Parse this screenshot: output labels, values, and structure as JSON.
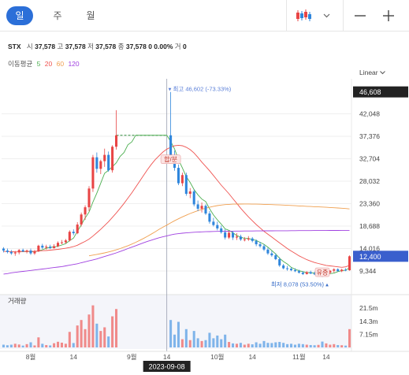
{
  "toolbar": {
    "tabs": [
      {
        "label": "일",
        "active": true
      },
      {
        "label": "주",
        "active": false
      },
      {
        "label": "월",
        "active": false
      }
    ],
    "chart_type_icon": "candlestick-icon",
    "dropdown_icon": "chevron-down-icon",
    "zoom_out_icon": "minus-icon",
    "zoom_in_icon": "plus-icon"
  },
  "info": {
    "symbol": "STX",
    "open_label": "시",
    "open": "37,578",
    "high_label": "고",
    "high": "37,578",
    "low_label": "저",
    "low": "37,578",
    "close_label": "종",
    "close": "37,578",
    "change": "0 0.00%",
    "volume_label": "거",
    "volume": "0"
  },
  "ma": {
    "label": "이동평균",
    "periods": [
      "5",
      "20",
      "60",
      "120"
    ],
    "colors": [
      "#4caf50",
      "#ef5350",
      "#f0a050",
      "#a040e0"
    ]
  },
  "scale_mode": "Linear",
  "colors": {
    "up": "#e84545",
    "down": "#2f86dc",
    "max_marker": "#5a7fd8",
    "min_marker": "#3b6fc9",
    "badge_bg": "#222222",
    "current_bg": "#3a5fcd"
  },
  "chart_data": {
    "type": "candlestick",
    "y_ticks": [
      "42,048",
      "37,376",
      "32,704",
      "28,032",
      "23,360",
      "18,688",
      "14,016",
      "9,344"
    ],
    "y_tick_values": [
      42048,
      37376,
      32704,
      28032,
      23360,
      18688,
      14016,
      9344
    ],
    "ylim": [
      5400,
      47700
    ],
    "badge_top": {
      "label": "46,608",
      "value": 46608
    },
    "badge_current": {
      "label": "12,400",
      "value": 12400
    },
    "max_annotation": {
      "label": "최고 46,602 (-73.33%)",
      "value": 46602,
      "index": 43
    },
    "min_annotation": {
      "label": "최저 8,078 (53.50%)",
      "value": 8078,
      "index": 83
    },
    "event_badges": [
      {
        "label": "합/분",
        "index": 43,
        "value": 32500
      },
      {
        "label": "유증",
        "index": 82,
        "value": 9000
      }
    ],
    "x_ticks": [
      {
        "label": "8월",
        "index": 7
      },
      {
        "label": "14",
        "index": 18
      },
      {
        "label": "9월",
        "index": 33
      },
      {
        "label": "14",
        "index": 42
      },
      {
        "label": "10월",
        "index": 55
      },
      {
        "label": "14",
        "index": 64
      },
      {
        "label": "11월",
        "index": 76
      },
      {
        "label": "14",
        "index": 83
      }
    ],
    "crosshair": {
      "label": "2023-09-08",
      "index": 42
    },
    "volume_title": "거래량",
    "volume_ticks": [
      "21.5m",
      "14.3m",
      "7.15m"
    ],
    "volume_tick_values": [
      21.5,
      14.3,
      7.15
    ],
    "volume_max": 28,
    "dashed_line": {
      "value": 37578,
      "from_index": 29,
      "to_index": 42
    },
    "candles": [
      [
        14000,
        14300,
        13200,
        13600,
        1.5
      ],
      [
        13600,
        14000,
        13000,
        13300,
        1.2
      ],
      [
        13300,
        13700,
        12700,
        13000,
        1.5
      ],
      [
        13000,
        13500,
        12500,
        13200,
        2.0
      ],
      [
        13200,
        13900,
        12800,
        13700,
        1.6
      ],
      [
        13700,
        14000,
        13300,
        13400,
        1.0
      ],
      [
        13400,
        13800,
        13000,
        13600,
        1.8
      ],
      [
        13600,
        14000,
        12700,
        13000,
        2.8
      ],
      [
        13000,
        13700,
        12700,
        13400,
        1.1
      ],
      [
        13400,
        14800,
        13300,
        14600,
        5.5
      ],
      [
        14600,
        15000,
        13900,
        14200,
        2.0
      ],
      [
        14200,
        14800,
        13800,
        14400,
        1.3
      ],
      [
        14400,
        14800,
        13900,
        14100,
        1.1
      ],
      [
        14100,
        14900,
        14000,
        14500,
        2.3
      ],
      [
        14500,
        15500,
        14300,
        15200,
        3.1
      ],
      [
        15200,
        15800,
        14900,
        15300,
        2.6
      ],
      [
        15300,
        16000,
        15000,
        15700,
        2.0
      ],
      [
        15700,
        17800,
        15500,
        17500,
        8.5
      ],
      [
        17500,
        18000,
        16800,
        17200,
        2.4
      ],
      [
        17200,
        19500,
        17000,
        19000,
        12.0
      ],
      [
        19000,
        21500,
        18600,
        21100,
        15.0
      ],
      [
        21100,
        23000,
        20000,
        22600,
        10.0
      ],
      [
        22600,
        27000,
        21800,
        26500,
        18.0
      ],
      [
        26500,
        33500,
        25800,
        33000,
        23.0
      ],
      [
        33000,
        34000,
        29800,
        30600,
        13.0
      ],
      [
        30600,
        32500,
        29500,
        32200,
        9.0
      ],
      [
        32200,
        34800,
        31000,
        33500,
        11.0
      ],
      [
        33500,
        34200,
        30000,
        30300,
        6.0
      ],
      [
        30300,
        35500,
        29800,
        35200,
        17.0
      ],
      [
        35200,
        42800,
        34600,
        37578,
        21.0
      ],
      [
        37578,
        37578,
        37578,
        37578,
        0
      ],
      [
        37578,
        37578,
        37578,
        37578,
        0
      ],
      [
        37578,
        37578,
        37578,
        37578,
        0
      ],
      [
        37578,
        37578,
        37578,
        37578,
        0
      ],
      [
        37578,
        37578,
        37578,
        37578,
        0
      ],
      [
        37578,
        37578,
        37578,
        37578,
        0
      ],
      [
        37578,
        37578,
        37578,
        37578,
        0
      ],
      [
        37578,
        37578,
        37578,
        37578,
        0
      ],
      [
        37578,
        37578,
        37578,
        37578,
        0
      ],
      [
        37578,
        37578,
        37578,
        37578,
        0
      ],
      [
        37578,
        37578,
        37578,
        37578,
        0
      ],
      [
        37578,
        37578,
        37578,
        37578,
        0
      ],
      [
        37578,
        37578,
        37578,
        37578,
        0
      ],
      [
        37578,
        46602,
        31800,
        33200,
        15.0
      ],
      [
        33200,
        34400,
        30200,
        30800,
        7.0
      ],
      [
        30800,
        31500,
        27200,
        27600,
        14.0
      ],
      [
        27600,
        29800,
        27000,
        29300,
        4.5
      ],
      [
        29300,
        29800,
        25000,
        25400,
        10.0
      ],
      [
        25400,
        26600,
        24500,
        25900,
        4.0
      ],
      [
        25900,
        26300,
        22800,
        23200,
        9.0
      ],
      [
        23200,
        24000,
        21800,
        22300,
        5.0
      ],
      [
        22300,
        23600,
        21500,
        22900,
        3.5
      ],
      [
        22900,
        23200,
        21000,
        21300,
        4.0
      ],
      [
        21300,
        21800,
        19200,
        19600,
        8.0
      ],
      [
        19600,
        20400,
        18600,
        18900,
        5.0
      ],
      [
        18900,
        19600,
        17800,
        18200,
        6.5
      ],
      [
        18200,
        18800,
        17100,
        17400,
        4.5
      ],
      [
        17400,
        18000,
        15900,
        16300,
        7.0
      ],
      [
        16300,
        17700,
        16000,
        17300,
        3.0
      ],
      [
        17300,
        17700,
        15800,
        16300,
        2.2
      ],
      [
        16300,
        17200,
        15800,
        16500,
        2.0
      ],
      [
        16500,
        16900,
        15600,
        15900,
        2.5
      ],
      [
        15900,
        16400,
        15500,
        15900,
        1.5
      ],
      [
        15900,
        16600,
        15600,
        16100,
        2.0
      ],
      [
        16100,
        16400,
        15300,
        15600,
        1.7
      ],
      [
        15600,
        15900,
        14500,
        14900,
        2.8
      ],
      [
        14900,
        15400,
        14200,
        14500,
        2.0
      ],
      [
        14500,
        14900,
        13500,
        13800,
        3.5
      ],
      [
        13800,
        14200,
        12700,
        13000,
        2.5
      ],
      [
        13000,
        13500,
        12300,
        12600,
        2.4
      ],
      [
        12600,
        13000,
        11600,
        11800,
        2.8
      ],
      [
        11800,
        12200,
        10200,
        10500,
        3.0
      ],
      [
        10500,
        10800,
        9700,
        9900,
        2.5
      ],
      [
        9900,
        10400,
        9400,
        9800,
        1.8
      ],
      [
        9800,
        10100,
        9300,
        9500,
        2.0
      ],
      [
        9500,
        9900,
        9100,
        9300,
        1.5
      ],
      [
        9300,
        9600,
        8800,
        9000,
        2.0
      ],
      [
        9000,
        9300,
        8500,
        8700,
        1.8
      ],
      [
        8700,
        9300,
        8600,
        9100,
        1.5
      ],
      [
        9100,
        9400,
        8700,
        8800,
        1.3
      ],
      [
        8800,
        9200,
        8500,
        8700,
        1.2
      ],
      [
        8700,
        9100,
        8400,
        8900,
        1.4
      ],
      [
        8900,
        9300,
        8078,
        8400,
        3.2
      ],
      [
        8400,
        9200,
        8300,
        9000,
        2.2
      ],
      [
        9000,
        9500,
        8700,
        9400,
        1.5
      ],
      [
        9400,
        9900,
        9000,
        9700,
        1.8
      ],
      [
        9700,
        9900,
        9200,
        9300,
        1.3
      ],
      [
        9300,
        9800,
        9100,
        9600,
        1.2
      ],
      [
        9600,
        9900,
        9300,
        9500,
        1.0
      ],
      [
        9500,
        12600,
        9400,
        12400,
        10.0
      ]
    ],
    "ma5": [
      null,
      null,
      null,
      null,
      13360,
      13360,
      13380,
      13380,
      13340,
      13540,
      13760,
      14060,
      14260,
      14360,
      14480,
      14740,
      15040,
      15640,
      16180,
      17560,
      18940,
      20380,
      21600,
      23680,
      25550,
      27600,
      29660,
      30310,
      31020,
      31840,
      33200,
      34000,
      35600,
      36200,
      37578,
      37578,
      37578,
      37578,
      37578,
      37578,
      37578,
      37578,
      37578,
      36302,
      34740,
      32500,
      30800,
      29000,
      27760,
      26300,
      25200,
      24300,
      23800,
      22300,
      21000,
      20000,
      19100,
      18100,
      17800,
      17300,
      16700,
      16400,
      16100,
      16100,
      15900,
      15700,
      15300,
      14900,
      14300,
      13600,
      12900,
      12000,
      11300,
      10800,
      10100,
      9700,
      9400,
      9200,
      9000,
      9000,
      8900,
      8800,
      8700,
      8700,
      8800,
      8900,
      9200,
      9400,
      9500,
      10000
    ],
    "ma20": [
      13400,
      13400,
      13350,
      13320,
      13340,
      13380,
      13400,
      13420,
      13440,
      13500,
      13560,
      13600,
      13680,
      13760,
      13840,
      13960,
      14080,
      14220,
      14420,
      14700,
      15100,
      15500,
      15980,
      16600,
      17300,
      18000,
      18800,
      19600,
      20500,
      21400,
      22400,
      23400,
      24500,
      25600,
      26800,
      28000,
      29200,
      30400,
      31500,
      32500,
      33300,
      34100,
      34700,
      35100,
      35400,
      35500,
      35400,
      35100,
      34600,
      33900,
      33000,
      32000,
      31100,
      30200,
      29200,
      28200,
      27200,
      26300,
      25400,
      24400,
      23400,
      22400,
      21500,
      20600,
      19800,
      19000,
      18300,
      17600,
      17000,
      16400,
      15800,
      15200,
      14600,
      14000,
      13500,
      13000,
      12500,
      12100,
      11700,
      11400,
      11100,
      10900,
      10700,
      10500,
      10400,
      10300,
      10200,
      10100,
      10200,
      10500
    ],
    "ma60": [
      null,
      null,
      null,
      null,
      null,
      null,
      null,
      null,
      null,
      null,
      null,
      null,
      null,
      null,
      null,
      null,
      null,
      null,
      null,
      null,
      null,
      null,
      12500,
      12650,
      12800,
      12950,
      13100,
      13300,
      13500,
      13750,
      14000,
      14300,
      14600,
      14950,
      15300,
      15700,
      16100,
      16550,
      17000,
      17500,
      18000,
      18450,
      18900,
      19350,
      19800,
      20200,
      20600,
      20950,
      21300,
      21600,
      21900,
      22150,
      22400,
      22600,
      22800,
      22950,
      23050,
      23150,
      23200,
      23250,
      23260,
      23270,
      23280,
      23280,
      23260,
      23250,
      23230,
      23200,
      23180,
      23150,
      23120,
      23090,
      23050,
      23010,
      22970,
      22920,
      22880,
      22840,
      22800,
      22760,
      22720,
      22680,
      22640,
      22600,
      22550,
      22500,
      22450,
      22400,
      22330,
      22250
    ],
    "ma120": [
      8700,
      8800,
      8950,
      9050,
      9150,
      9250,
      9350,
      9450,
      9550,
      9650,
      9750,
      9850,
      9950,
      10050,
      10150,
      10250,
      10400,
      10550,
      10700,
      10850,
      11050,
      11250,
      11450,
      11650,
      11850,
      12100,
      12350,
      12600,
      12850,
      13100,
      13400,
      13700,
      14000,
      14300,
      14600,
      14900,
      15200,
      15500,
      15750,
      16000,
      16250,
      16450,
      16650,
      16850,
      17000,
      17100,
      17200,
      17270,
      17340,
      17400,
      17440,
      17480,
      17510,
      17540,
      17560,
      17580,
      17600,
      17610,
      17620,
      17630,
      17640,
      17650,
      17660,
      17670,
      17670,
      17680,
      17680,
      17690,
      17700,
      17700,
      17710,
      17710,
      17720,
      17720,
      17730,
      17730,
      17740,
      17740,
      17750,
      17750,
      17760,
      17760,
      17770,
      17770,
      17780,
      17780,
      17780,
      17790,
      17790,
      17800
    ]
  }
}
